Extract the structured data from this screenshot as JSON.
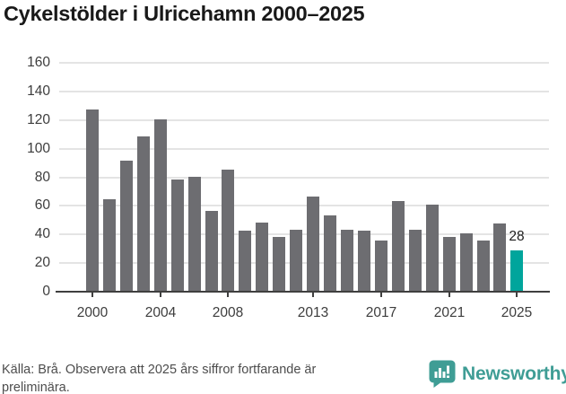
{
  "title": "Cykelstölder i Ulricehamn 2000–2025",
  "footer": {
    "source_note": "Källa: Brå. Observera att 2025 års siffror fortfarande är preliminära."
  },
  "branding": {
    "name": "Newsworthy",
    "color": "#3f9d95"
  },
  "chart_data": {
    "type": "bar",
    "title": "Cykelstölder i Ulricehamn 2000–2025",
    "x": [
      2000,
      2001,
      2002,
      2003,
      2004,
      2005,
      2006,
      2007,
      2008,
      2009,
      2010,
      2011,
      2012,
      2013,
      2014,
      2015,
      2016,
      2017,
      2018,
      2019,
      2020,
      2021,
      2022,
      2023,
      2024,
      2025
    ],
    "values": [
      127,
      64,
      91,
      108,
      120,
      78,
      80,
      56,
      85,
      42,
      48,
      38,
      43,
      66,
      53,
      43,
      42,
      35,
      63,
      43,
      60,
      38,
      40,
      35,
      47,
      28
    ],
    "highlight": {
      "x": 2025,
      "value": 28,
      "label": "28"
    },
    "colors": {
      "bar": "#6d6d71",
      "highlight": "#00a59c",
      "grid": "#e4e4e4",
      "axis": "#3f3f3f"
    },
    "ylim": [
      0,
      160
    ],
    "yticks": [
      0,
      20,
      40,
      60,
      80,
      100,
      120,
      140,
      160
    ],
    "xticks": [
      "2000",
      "2004",
      "2008",
      "2013",
      "2017",
      "2021",
      "2025"
    ],
    "grid": true,
    "legend": false
  }
}
